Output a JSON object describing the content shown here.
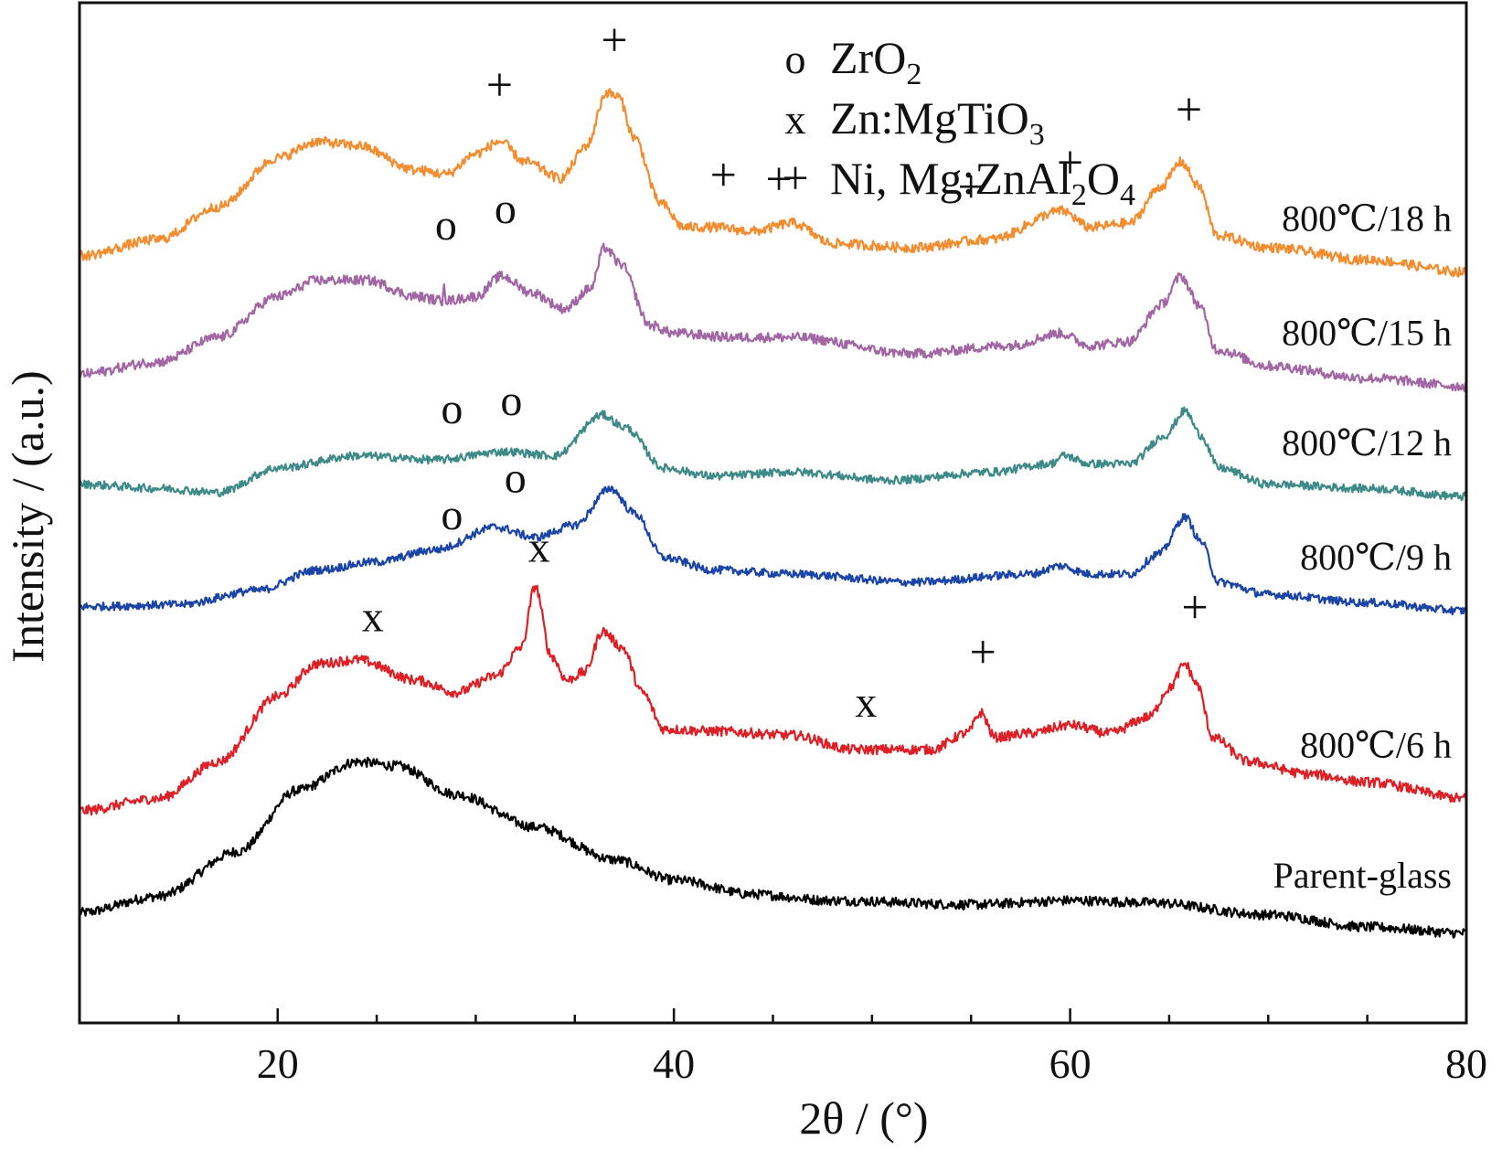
{
  "chart_data": {
    "type": "line",
    "title": "",
    "xlabel": "2θ / (°)",
    "ylabel": "Intensity / (a.u.)",
    "xlim": [
      10,
      80
    ],
    "xticks": [
      20,
      40,
      60,
      80
    ],
    "xtick_labels": [
      "20",
      "40",
      "60",
      "80"
    ],
    "grid": false,
    "legend": {
      "placement": "top-center",
      "entries": [
        {
          "symbol": "o",
          "text": "ZrO",
          "sub": "2",
          "tail": ""
        },
        {
          "symbol": "x",
          "text": "Zn:MgTiO",
          "sub": "3",
          "tail": ""
        },
        {
          "symbol": "+",
          "text": "Ni, Mg:ZnAl",
          "sub": "2",
          "tail": "O",
          "sub2": "4"
        }
      ]
    },
    "series": [
      {
        "label": "Parent-glass",
        "color": "#000000",
        "noise": 0.12,
        "points": [
          [
            10,
            0.5
          ],
          [
            14,
            0.9
          ],
          [
            18,
            2.0
          ],
          [
            21,
            3.5
          ],
          [
            24,
            4.2
          ],
          [
            26,
            4.1
          ],
          [
            29,
            3.4
          ],
          [
            33,
            2.6
          ],
          [
            37,
            1.8
          ],
          [
            40,
            1.3
          ],
          [
            44,
            0.95
          ],
          [
            48,
            0.8
          ],
          [
            55,
            0.7
          ],
          [
            60,
            0.8
          ],
          [
            64,
            0.75
          ],
          [
            70,
            0.45
          ],
          [
            75,
            0.15
          ],
          [
            80,
            0.0
          ]
        ]
      },
      {
        "label": "800℃/6 h",
        "color": "#dd1f26",
        "noise": 0.12,
        "points": [
          [
            10,
            3.0
          ],
          [
            14,
            3.3
          ],
          [
            17,
            4.2
          ],
          [
            20,
            5.8
          ],
          [
            22,
            6.6
          ],
          [
            24,
            6.7
          ],
          [
            27,
            6.2
          ],
          [
            29,
            5.9
          ],
          [
            31,
            6.3
          ],
          [
            32.3,
            7.0
          ],
          [
            33.0,
            8.5
          ],
          [
            33.8,
            6.8
          ],
          [
            34.6,
            6.2
          ],
          [
            35.5,
            6.4
          ],
          [
            36.4,
            7.4
          ],
          [
            37.4,
            7.0
          ],
          [
            38.4,
            5.9
          ],
          [
            39.5,
            5.0
          ],
          [
            42,
            4.95
          ],
          [
            46,
            4.85
          ],
          [
            49,
            4.5
          ],
          [
            53,
            4.5
          ],
          [
            54.8,
            4.9
          ],
          [
            55.5,
            5.4
          ],
          [
            56.2,
            4.8
          ],
          [
            58,
            4.9
          ],
          [
            60,
            5.1
          ],
          [
            62,
            4.9
          ],
          [
            64,
            5.3
          ],
          [
            65,
            6.0
          ],
          [
            65.8,
            6.6
          ],
          [
            66.4,
            6.1
          ],
          [
            67.2,
            4.8
          ],
          [
            69,
            4.2
          ],
          [
            72,
            3.9
          ],
          [
            75,
            3.7
          ],
          [
            80,
            3.3
          ]
        ]
      },
      {
        "label": "800℃/9 h",
        "color": "#1a45a6",
        "noise": 0.1,
        "points": [
          [
            10,
            8.0
          ],
          [
            15,
            8.05
          ],
          [
            19,
            8.4
          ],
          [
            22,
            8.9
          ],
          [
            25,
            9.1
          ],
          [
            28,
            9.4
          ],
          [
            31,
            9.95
          ],
          [
            33,
            9.7
          ],
          [
            35,
            10.0
          ],
          [
            36.8,
            10.9
          ],
          [
            38,
            10.3
          ],
          [
            39.5,
            9.2
          ],
          [
            42,
            8.9
          ],
          [
            46,
            8.8
          ],
          [
            52,
            8.6
          ],
          [
            58,
            8.8
          ],
          [
            59.5,
            9.0
          ],
          [
            61,
            8.8
          ],
          [
            63,
            8.8
          ],
          [
            64.5,
            9.3
          ],
          [
            65.8,
            10.2
          ],
          [
            66.6,
            9.6
          ],
          [
            67.5,
            8.6
          ],
          [
            70,
            8.3
          ],
          [
            75,
            8.1
          ],
          [
            80,
            7.9
          ]
        ]
      },
      {
        "label": "800℃/12 h",
        "color": "#3d8a88",
        "noise": 0.1,
        "points": [
          [
            10,
            11.0
          ],
          [
            14,
            10.9
          ],
          [
            17,
            10.8
          ],
          [
            20,
            11.4
          ],
          [
            24,
            11.7
          ],
          [
            28,
            11.6
          ],
          [
            31.5,
            11.8
          ],
          [
            34,
            11.7
          ],
          [
            36.4,
            12.7
          ],
          [
            37.5,
            12.4
          ],
          [
            39.5,
            11.4
          ],
          [
            42,
            11.2
          ],
          [
            46,
            11.3
          ],
          [
            51,
            11.1
          ],
          [
            56,
            11.3
          ],
          [
            59,
            11.5
          ],
          [
            59.7,
            11.7
          ],
          [
            61,
            11.5
          ],
          [
            63,
            11.5
          ],
          [
            64.8,
            12.2
          ],
          [
            65.8,
            12.8
          ],
          [
            66.6,
            12.2
          ],
          [
            67.5,
            11.4
          ],
          [
            70,
            11.0
          ],
          [
            75,
            10.9
          ],
          [
            80,
            10.7
          ]
        ]
      },
      {
        "label": "800℃/15 h",
        "color": "#a266a5",
        "noise": 0.12,
        "points": [
          [
            10,
            13.7
          ],
          [
            14,
            14.0
          ],
          [
            17,
            14.6
          ],
          [
            20,
            15.6
          ],
          [
            22,
            16.0
          ],
          [
            24.5,
            16.0
          ],
          [
            27,
            15.6
          ],
          [
            28.3,
            15.5
          ],
          [
            28.4,
            16.0
          ],
          [
            28.5,
            15.5
          ],
          [
            30,
            15.6
          ],
          [
            31.3,
            16.1
          ],
          [
            32.8,
            15.7
          ],
          [
            34.5,
            15.3
          ],
          [
            35.8,
            15.8
          ],
          [
            36.5,
            16.8
          ],
          [
            37.3,
            16.4
          ],
          [
            38.8,
            14.9
          ],
          [
            40,
            14.7
          ],
          [
            43,
            14.6
          ],
          [
            46,
            14.6
          ],
          [
            52,
            14.2
          ],
          [
            57,
            14.4
          ],
          [
            59.5,
            14.7
          ],
          [
            61,
            14.4
          ],
          [
            63,
            14.5
          ],
          [
            64.6,
            15.4
          ],
          [
            65.6,
            16.1
          ],
          [
            66.5,
            15.4
          ],
          [
            67.4,
            14.3
          ],
          [
            70,
            13.9
          ],
          [
            75,
            13.6
          ],
          [
            80,
            13.4
          ]
        ]
      },
      {
        "label": "800℃/18 h",
        "color": "#f28c2e",
        "noise": 0.12,
        "points": [
          [
            10,
            16.6
          ],
          [
            14,
            17.0
          ],
          [
            17,
            17.8
          ],
          [
            20,
            19.0
          ],
          [
            22,
            19.4
          ],
          [
            24,
            19.3
          ],
          [
            27,
            18.7
          ],
          [
            28.5,
            18.6
          ],
          [
            30,
            19.1
          ],
          [
            31.2,
            19.4
          ],
          [
            32.5,
            18.9
          ],
          [
            34.3,
            18.5
          ],
          [
            35.6,
            19.3
          ],
          [
            36.6,
            20.6
          ],
          [
            37.2,
            20.5
          ],
          [
            38,
            19.5
          ],
          [
            39.3,
            17.9
          ],
          [
            40.5,
            17.3
          ],
          [
            42,
            17.3
          ],
          [
            44,
            17.2
          ],
          [
            46,
            17.4
          ],
          [
            48,
            16.9
          ],
          [
            52,
            16.8
          ],
          [
            56,
            17.0
          ],
          [
            59.6,
            17.7
          ],
          [
            61,
            17.3
          ],
          [
            63,
            17.4
          ],
          [
            64.6,
            18.3
          ],
          [
            65.6,
            18.9
          ],
          [
            66.5,
            18.3
          ],
          [
            67.4,
            17.1
          ],
          [
            70,
            16.8
          ],
          [
            75,
            16.5
          ],
          [
            80,
            16.2
          ]
        ]
      }
    ],
    "annotations": [
      {
        "symbol": "+",
        "x": 37.0,
        "y": 21.5
      },
      {
        "symbol": "+",
        "x": 31.2,
        "y": 20.4
      },
      {
        "symbol": "+",
        "x": 42.5,
        "y": 18.2
      },
      {
        "symbol": "+",
        "x": 45.3,
        "y": 18.1
      },
      {
        "symbol": "+",
        "x": 55.0,
        "y": 17.9
      },
      {
        "symbol": "+",
        "x": 60.0,
        "y": 18.5
      },
      {
        "symbol": "+",
        "x": 66.0,
        "y": 19.8
      },
      {
        "symbol": "o",
        "x": 28.5,
        "y": 17.0
      },
      {
        "symbol": "o",
        "x": 31.5,
        "y": 17.4
      },
      {
        "symbol": "o",
        "x": 28.8,
        "y": 12.5
      },
      {
        "symbol": "o",
        "x": 31.8,
        "y": 12.7
      },
      {
        "symbol": "o",
        "x": 28.8,
        "y": 9.9
      },
      {
        "symbol": "o",
        "x": 32.0,
        "y": 10.8
      },
      {
        "symbol": "x",
        "x": 33.2,
        "y": 9.1
      },
      {
        "symbol": "x",
        "x": 24.8,
        "y": 7.4
      },
      {
        "symbol": "x",
        "x": 49.7,
        "y": 5.3
      },
      {
        "symbol": "+",
        "x": 55.6,
        "y": 6.5
      },
      {
        "symbol": "+",
        "x": 66.3,
        "y": 7.6
      }
    ]
  }
}
